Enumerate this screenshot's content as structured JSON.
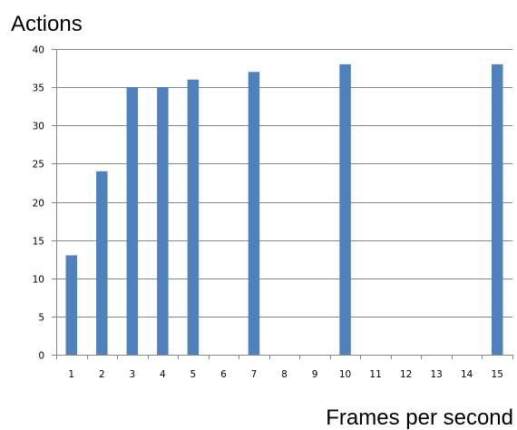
{
  "chart_data": {
    "type": "bar",
    "title": "",
    "xlabel": "Frames per second",
    "ylabel": "Actions",
    "categories": [
      "1",
      "2",
      "3",
      "4",
      "5",
      "6",
      "7",
      "8",
      "9",
      "10",
      "11",
      "12",
      "13",
      "14",
      "15"
    ],
    "values": [
      13,
      24,
      35,
      35,
      36,
      null,
      37,
      null,
      null,
      38,
      null,
      null,
      null,
      null,
      38
    ],
    "yticks": [
      "0",
      "5",
      "10",
      "15",
      "20",
      "25",
      "30",
      "35",
      "40"
    ],
    "ylim": [
      0,
      40
    ],
    "grid": true,
    "legend": "none",
    "bar_color": "#4f81bd",
    "grid_color": "#878787",
    "axis_color": "#878787"
  }
}
